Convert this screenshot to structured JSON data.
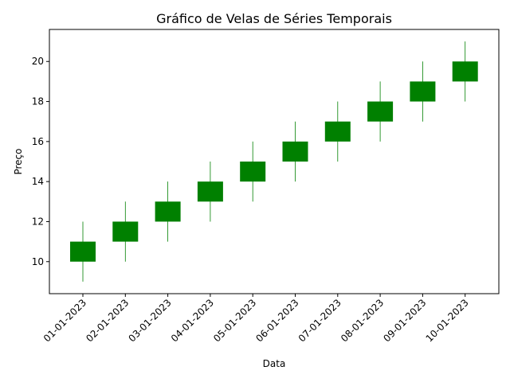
{
  "chart_data": {
    "type": "candlestick",
    "title": "Gráfico de Velas de Séries Temporais",
    "xlabel": "Data",
    "ylabel": "Preço",
    "categories": [
      "01-01-2023",
      "02-01-2023",
      "03-01-2023",
      "04-01-2023",
      "05-01-2023",
      "06-01-2023",
      "07-01-2023",
      "08-01-2023",
      "09-01-2023",
      "10-01-2023"
    ],
    "open": [
      10,
      11,
      12,
      13,
      14,
      15,
      16,
      17,
      18,
      19
    ],
    "close": [
      11,
      12,
      13,
      14,
      15,
      16,
      17,
      18,
      19,
      20
    ],
    "high": [
      12,
      13,
      14,
      15,
      16,
      17,
      18,
      19,
      20,
      21
    ],
    "low": [
      9,
      10,
      11,
      12,
      13,
      14,
      15,
      16,
      17,
      18
    ],
    "ylim": [
      8.4,
      21.6
    ],
    "yticks": [
      10,
      12,
      14,
      16,
      18,
      20
    ],
    "grid": false,
    "colors": {
      "up": "#008000",
      "wick": "#008000",
      "axis": "#000000"
    }
  }
}
